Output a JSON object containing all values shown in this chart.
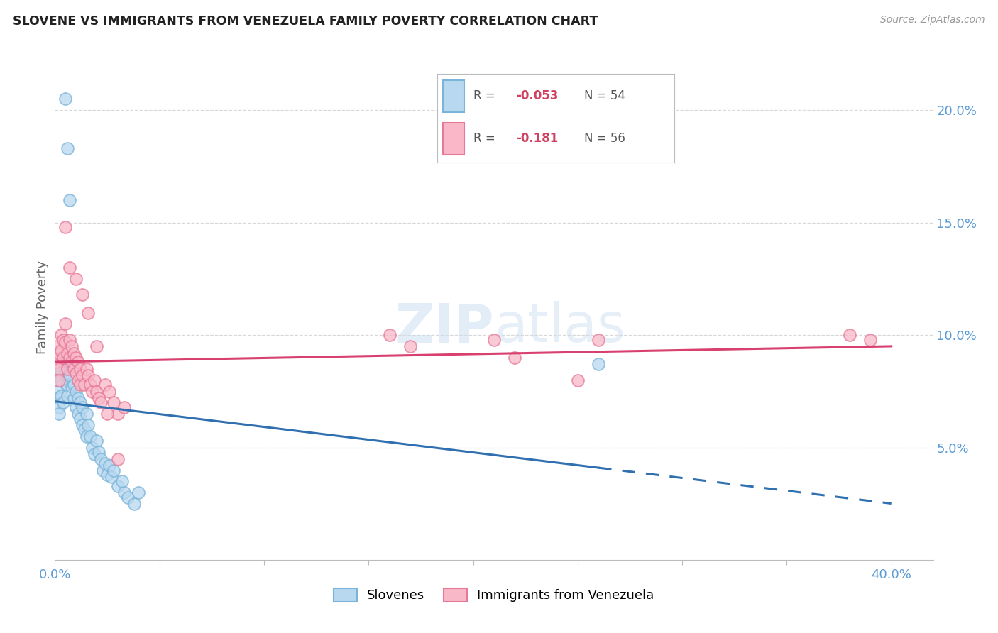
{
  "title": "SLOVENE VS IMMIGRANTS FROM VENEZUELA FAMILY POVERTY CORRELATION CHART",
  "source": "Source: ZipAtlas.com",
  "ylabel": "Family Poverty",
  "xlim": [
    0.0,
    0.42
  ],
  "ylim": [
    0.0,
    0.225
  ],
  "ytick_vals": [
    0.05,
    0.1,
    0.15,
    0.2
  ],
  "ytick_labels": [
    "5.0%",
    "10.0%",
    "15.0%",
    "20.0%"
  ],
  "xtick_positions": [
    0.0,
    0.05,
    0.1,
    0.15,
    0.2,
    0.25,
    0.3,
    0.35,
    0.4
  ],
  "xtick_labels": [
    "0.0%",
    "",
    "",
    "",
    "",
    "",
    "",
    "",
    "40.0%"
  ],
  "blue_color_face": "#b8d8f0",
  "blue_color_edge": "#7ab4d8",
  "pink_color_face": "#f8b8c8",
  "pink_color_edge": "#e87898",
  "blue_line_color": "#3070b0",
  "pink_line_color": "#d84070",
  "tick_color": "#5b9bd5",
  "label_color": "#666666",
  "grid_color": "#d8d8d8",
  "watermark_color": "#dce8f5",
  "blue_R": "-0.053",
  "blue_N": "54",
  "pink_R": "-0.181",
  "pink_N": "56",
  "legend_label_blue": "Slovenes",
  "legend_label_pink": "Immigrants from Venezuela",
  "blue_scatter_x": [
    0.001,
    0.001,
    0.002,
    0.002,
    0.002,
    0.003,
    0.003,
    0.003,
    0.004,
    0.004,
    0.005,
    0.005,
    0.006,
    0.006,
    0.007,
    0.007,
    0.008,
    0.008,
    0.009,
    0.009,
    0.01,
    0.01,
    0.011,
    0.011,
    0.012,
    0.012,
    0.013,
    0.013,
    0.014,
    0.015,
    0.015,
    0.016,
    0.017,
    0.018,
    0.019,
    0.02,
    0.021,
    0.022,
    0.023,
    0.024,
    0.025,
    0.026,
    0.027,
    0.028,
    0.03,
    0.032,
    0.033,
    0.035,
    0.038,
    0.04,
    0.005,
    0.006,
    0.007,
    0.26
  ],
  "blue_scatter_y": [
    0.082,
    0.075,
    0.072,
    0.068,
    0.065,
    0.085,
    0.08,
    0.073,
    0.088,
    0.07,
    0.09,
    0.083,
    0.078,
    0.073,
    0.088,
    0.082,
    0.077,
    0.085,
    0.078,
    0.072,
    0.075,
    0.068,
    0.072,
    0.065,
    0.07,
    0.063,
    0.068,
    0.06,
    0.058,
    0.065,
    0.055,
    0.06,
    0.055,
    0.05,
    0.047,
    0.053,
    0.048,
    0.045,
    0.04,
    0.043,
    0.038,
    0.042,
    0.037,
    0.04,
    0.033,
    0.035,
    0.03,
    0.028,
    0.025,
    0.03,
    0.205,
    0.183,
    0.16,
    0.087
  ],
  "pink_scatter_x": [
    0.001,
    0.001,
    0.002,
    0.002,
    0.002,
    0.003,
    0.003,
    0.004,
    0.004,
    0.005,
    0.005,
    0.006,
    0.006,
    0.007,
    0.007,
    0.008,
    0.008,
    0.009,
    0.009,
    0.01,
    0.01,
    0.011,
    0.011,
    0.012,
    0.012,
    0.013,
    0.014,
    0.015,
    0.016,
    0.017,
    0.018,
    0.019,
    0.02,
    0.021,
    0.022,
    0.024,
    0.026,
    0.028,
    0.03,
    0.033,
    0.21,
    0.26,
    0.22,
    0.17,
    0.16,
    0.005,
    0.007,
    0.01,
    0.013,
    0.016,
    0.02,
    0.025,
    0.03,
    0.38,
    0.39,
    0.25
  ],
  "pink_scatter_y": [
    0.095,
    0.088,
    0.092,
    0.085,
    0.08,
    0.1,
    0.093,
    0.098,
    0.09,
    0.105,
    0.097,
    0.092,
    0.085,
    0.098,
    0.09,
    0.095,
    0.088,
    0.092,
    0.085,
    0.09,
    0.083,
    0.088,
    0.08,
    0.085,
    0.078,
    0.082,
    0.078,
    0.085,
    0.082,
    0.078,
    0.075,
    0.08,
    0.075,
    0.072,
    0.07,
    0.078,
    0.075,
    0.07,
    0.065,
    0.068,
    0.098,
    0.098,
    0.09,
    0.095,
    0.1,
    0.148,
    0.13,
    0.125,
    0.118,
    0.11,
    0.095,
    0.065,
    0.045,
    0.1,
    0.098,
    0.08
  ]
}
